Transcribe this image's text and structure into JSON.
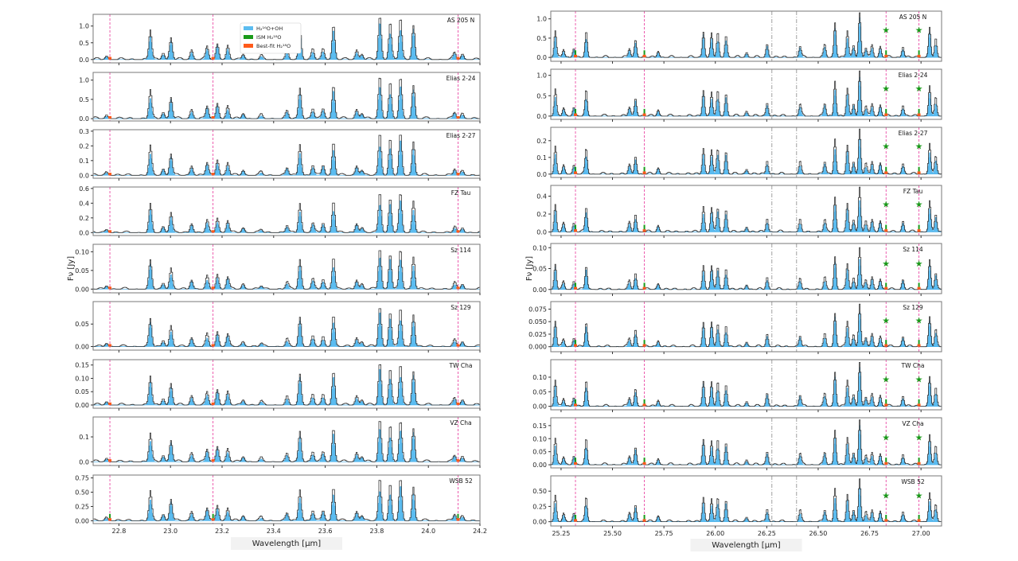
{
  "chart_data": [
    {
      "type": "line",
      "xlabel": "Wavelength [μm]",
      "ylabel": "Fν [Jy]",
      "xlim": [
        22.7,
        24.2
      ],
      "xticks": [
        22.8,
        23.0,
        23.2,
        23.4,
        23.6,
        23.8,
        24.0,
        24.2
      ],
      "xtick_labels": [
        "22.8",
        "23.0",
        "23.2",
        "23.4",
        "23.6",
        "23.8",
        "24.0",
        "24.2"
      ],
      "legend": {
        "placement": "top-center",
        "entries": [
          {
            "label": "H₂¹⁶O+OH",
            "color": "#5bbcf0"
          },
          {
            "label": "ISM H₂¹⁸O",
            "color": "#1a9a1a"
          },
          {
            "label": "Best-fit H₂¹⁸O",
            "color": "#ff5a1a"
          }
        ]
      },
      "vlines_dashed": [
        22.765,
        23.165,
        24.115
      ],
      "vlines_dashdot": [],
      "stars": [],
      "peaks": [
        [
          22.75,
          0.08
        ],
        [
          22.92,
          0.68
        ],
        [
          22.97,
          0.15
        ],
        [
          23.0,
          0.5
        ],
        [
          23.08,
          0.22
        ],
        [
          23.14,
          0.3
        ],
        [
          23.18,
          0.36
        ],
        [
          23.22,
          0.3
        ],
        [
          23.28,
          0.12
        ],
        [
          23.35,
          0.08
        ],
        [
          23.45,
          0.18
        ],
        [
          23.5,
          0.72
        ],
        [
          23.55,
          0.24
        ],
        [
          23.59,
          0.24
        ],
        [
          23.63,
          0.78
        ],
        [
          23.72,
          0.22
        ],
        [
          23.74,
          0.12
        ],
        [
          23.81,
          1.0
        ],
        [
          23.85,
          0.86
        ],
        [
          23.89,
          0.96
        ],
        [
          23.94,
          0.78
        ],
        [
          24.1,
          0.15
        ],
        [
          24.13,
          0.12
        ]
      ],
      "panels": [
        {
          "name": "AS 205 N",
          "peak_flux": 1.3,
          "ylim": [
            -0.1,
            1.35
          ],
          "yticks": [
            0.0,
            0.5,
            1.0
          ],
          "ytick_labels": [
            "0.0",
            "0.5",
            "1.0"
          ]
        },
        {
          "name": "Elias 2-24",
          "peak_flux": 1.1,
          "ylim": [
            -0.06,
            1.2
          ],
          "yticks": [
            0.0,
            0.5,
            1.0
          ],
          "ytick_labels": [
            "0.0",
            "0.5",
            "1.0"
          ]
        },
        {
          "name": "Elias 2-27",
          "peak_flux": 0.29,
          "ylim": [
            -0.02,
            0.31
          ],
          "yticks": [
            0.0,
            0.1,
            0.2,
            0.3
          ],
          "ytick_labels": [
            "0.0",
            "0.1",
            "0.2",
            "0.3"
          ]
        },
        {
          "name": "FZ Tau",
          "peak_flux": 0.55,
          "ylim": [
            -0.04,
            0.62
          ],
          "yticks": [
            0.0,
            0.2,
            0.4,
            0.6
          ],
          "ytick_labels": [
            "0.0",
            "0.2",
            "0.4",
            "0.6"
          ]
        },
        {
          "name": "Sz 114",
          "peak_flux": 0.11,
          "ylim": [
            -0.01,
            0.12
          ],
          "yticks": [
            0.0,
            0.05,
            0.1
          ],
          "ytick_labels": [
            "0.00",
            "0.05",
            "0.10"
          ]
        },
        {
          "name": "Sz 129",
          "peak_flux": 0.09,
          "ylim": [
            -0.008,
            0.1
          ],
          "yticks": [
            0.0,
            0.05
          ],
          "ytick_labels": [
            "0.00",
            "0.05"
          ]
        },
        {
          "name": "TW Cha",
          "peak_flux": 0.16,
          "ylim": [
            -0.012,
            0.17
          ],
          "yticks": [
            0.0,
            0.05,
            0.1,
            0.15
          ],
          "ytick_labels": [
            "0.00",
            "0.05",
            "0.10",
            "0.15"
          ]
        },
        {
          "name": "VZ Cha",
          "peak_flux": 0.17,
          "ylim": [
            -0.015,
            0.18
          ],
          "yticks": [
            0.0,
            0.1
          ],
          "ytick_labels": [
            "0.0",
            "0.1"
          ]
        },
        {
          "name": "WSB 52",
          "peak_flux": 0.75,
          "ylim": [
            -0.05,
            0.8
          ],
          "yticks": [
            0.0,
            0.25,
            0.5,
            0.75
          ],
          "ytick_labels": [
            "0.00",
            "0.25",
            "0.50",
            "0.75"
          ]
        }
      ]
    },
    {
      "type": "line",
      "xlabel": "Wavelength [μm]",
      "ylabel": "Fν [Jy]",
      "xlim": [
        25.2,
        27.1
      ],
      "xticks": [
        25.25,
        25.5,
        25.75,
        26.0,
        26.25,
        26.5,
        26.75,
        27.0
      ],
      "xtick_labels": [
        "25.25",
        "25.50",
        "25.75",
        "26.00",
        "26.25",
        "26.50",
        "26.75",
        "27.00"
      ],
      "vlines_dashed": [
        25.32,
        25.655,
        26.83,
        26.99
      ],
      "vlines_dashdot": [
        26.275,
        26.395
      ],
      "stars": [
        26.83,
        26.99
      ],
      "peaks": [
        [
          25.22,
          0.6
        ],
        [
          25.26,
          0.18
        ],
        [
          25.31,
          0.2
        ],
        [
          25.37,
          0.56
        ],
        [
          25.58,
          0.2
        ],
        [
          25.61,
          0.4
        ],
        [
          25.72,
          0.14
        ],
        [
          25.94,
          0.57
        ],
        [
          25.98,
          0.54
        ],
        [
          26.01,
          0.54
        ],
        [
          26.05,
          0.5
        ],
        [
          26.15,
          0.11
        ],
        [
          26.25,
          0.3
        ],
        [
          26.41,
          0.26
        ],
        [
          26.53,
          0.28
        ],
        [
          26.58,
          0.78
        ],
        [
          26.64,
          0.6
        ],
        [
          26.67,
          0.28
        ],
        [
          26.7,
          1.0
        ],
        [
          26.73,
          0.22
        ],
        [
          26.76,
          0.28
        ],
        [
          26.8,
          0.25
        ],
        [
          26.91,
          0.24
        ],
        [
          27.04,
          0.68
        ],
        [
          27.07,
          0.4
        ]
      ],
      "panels": [
        {
          "name": "AS 205 N",
          "peak_flux": 1.15,
          "ylim": [
            -0.1,
            1.2
          ],
          "yticks": [
            0.0,
            0.5,
            1.0
          ],
          "ytick_labels": [
            "0.0",
            "0.5",
            "1.0"
          ]
        },
        {
          "name": "Elias 2-24",
          "peak_flux": 1.1,
          "ylim": [
            -0.08,
            1.15
          ],
          "yticks": [
            0.0,
            0.5,
            1.0
          ],
          "ytick_labels": [
            "0.0",
            "0.5",
            "1.0"
          ]
        },
        {
          "name": "Elias 2-27",
          "peak_flux": 0.27,
          "ylim": [
            -0.02,
            0.28
          ],
          "yticks": [
            0.0,
            0.1,
            0.2
          ],
          "ytick_labels": [
            "0.0",
            "0.1",
            "0.2"
          ]
        },
        {
          "name": "FZ Tau",
          "peak_flux": 0.5,
          "ylim": [
            -0.04,
            0.52
          ],
          "yticks": [
            0.0,
            0.2,
            0.4
          ],
          "ytick_labels": [
            "0.0",
            "0.2",
            "0.4"
          ]
        },
        {
          "name": "Sz 114",
          "peak_flux": 0.1,
          "ylim": [
            -0.01,
            0.11
          ],
          "yticks": [
            0.0,
            0.05,
            0.1
          ],
          "ytick_labels": [
            "0.00",
            "0.05",
            "0.10"
          ]
        },
        {
          "name": "Sz 129",
          "peak_flux": 0.085,
          "ylim": [
            -0.01,
            0.09
          ],
          "yticks": [
            0.0,
            0.025,
            0.05,
            0.075
          ],
          "ytick_labels": [
            "0.000",
            "0.025",
            "0.050",
            "0.075"
          ]
        },
        {
          "name": "TW Cha",
          "peak_flux": 0.15,
          "ylim": [
            -0.012,
            0.16
          ],
          "yticks": [
            0.0,
            0.05,
            0.1
          ],
          "ytick_labels": [
            "0.00",
            "0.05",
            "0.10"
          ]
        },
        {
          "name": "VZ Cha",
          "peak_flux": 0.17,
          "ylim": [
            -0.012,
            0.18
          ],
          "yticks": [
            0.0,
            0.05,
            0.1,
            0.15
          ],
          "ytick_labels": [
            "0.00",
            "0.05",
            "0.10",
            "0.15"
          ]
        },
        {
          "name": "WSB 52",
          "peak_flux": 0.7,
          "ylim": [
            -0.07,
            0.75
          ],
          "yticks": [
            0.0,
            0.25,
            0.5
          ],
          "ytick_labels": [
            "0.00",
            "0.25",
            "0.50"
          ]
        }
      ]
    }
  ]
}
